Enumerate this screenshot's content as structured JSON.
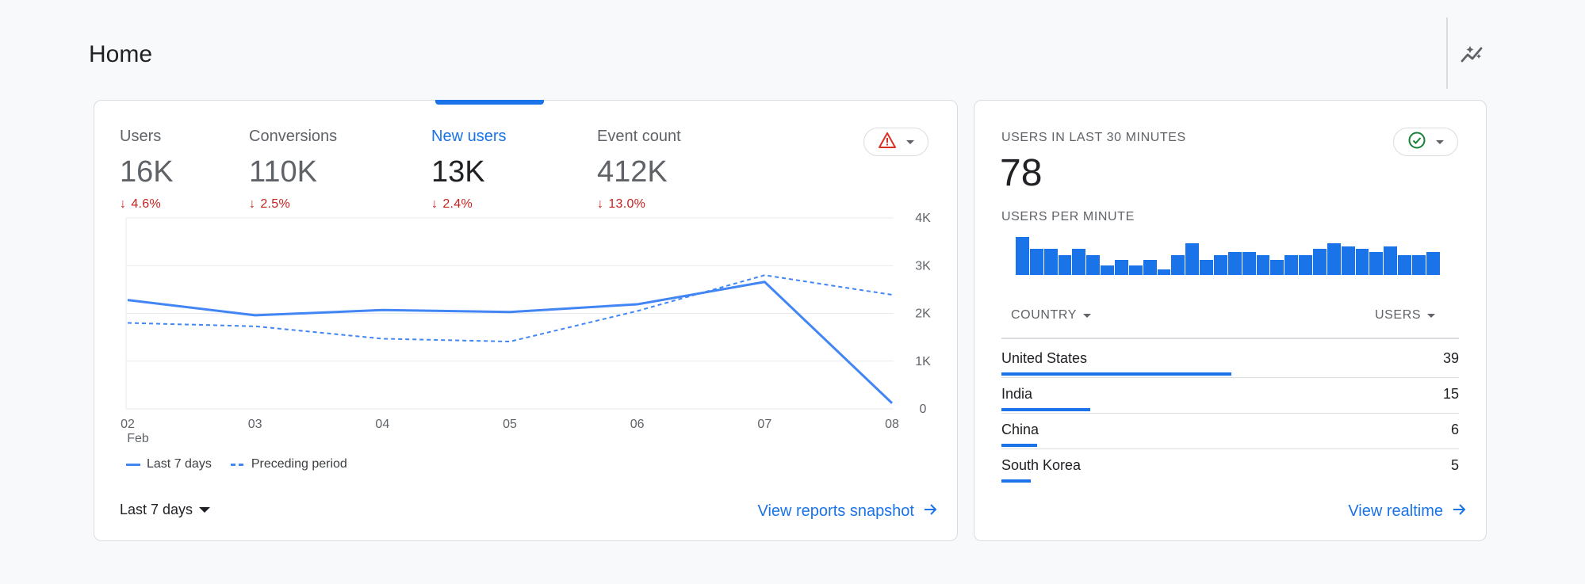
{
  "header": {
    "title": "Home",
    "insights_icon": "insights-sparkle-icon"
  },
  "overview": {
    "metrics": [
      {
        "label": "Users",
        "value": "16K",
        "change": "4.6%"
      },
      {
        "label": "Conversions",
        "value": "110K",
        "change": "2.5%"
      },
      {
        "label": "New users",
        "value": "13K",
        "change": "2.4%",
        "active": true
      },
      {
        "label": "Event count",
        "value": "412K",
        "change": "13.0%"
      }
    ],
    "alert_icon": "warning-triangle-icon",
    "date_range": "Last 7 days",
    "link": "View reports snapshot"
  },
  "chart_data": {
    "type": "line",
    "x": [
      "02",
      "03",
      "04",
      "05",
      "06",
      "07",
      "08"
    ],
    "x_sub": [
      "Feb",
      "",
      "",
      "",
      "",
      "",
      ""
    ],
    "ytick_labels": [
      "0",
      "1K",
      "2K",
      "3K",
      "4K"
    ],
    "ylim": [
      0,
      4000
    ],
    "y_side": "right",
    "grid": true,
    "legend_position": "bottom-left",
    "series": [
      {
        "name": "Last 7 days",
        "style": "solid",
        "values": [
          2280,
          1960,
          2070,
          2030,
          2190,
          2660,
          120
        ]
      },
      {
        "name": "Preceding period",
        "style": "dashed",
        "values": [
          1800,
          1730,
          1470,
          1410,
          2050,
          2800,
          2390
        ]
      }
    ],
    "colors": {
      "line": "#4285f4",
      "grid": "#e8eaed",
      "tick": "#5f6368"
    }
  },
  "realtime": {
    "title": "USERS IN LAST 30 MINUTES",
    "count": "78",
    "subtitle": "USERS PER MINUTE",
    "status_icon": "check-circle-icon",
    "per_minute": [
      5,
      3.4,
      3.4,
      2.6,
      3.4,
      2.6,
      1.2,
      2.0,
      1.2,
      2.0,
      0.7,
      2.6,
      4.2,
      2.0,
      2.6,
      3.0,
      3.0,
      2.6,
      2.0,
      2.6,
      2.6,
      3.4,
      4.2,
      3.8,
      3.4,
      3.0,
      3.8,
      2.6,
      2.6,
      3.0
    ],
    "table": {
      "col_country": "COUNTRY",
      "col_users": "USERS",
      "rows": [
        {
          "country": "United States",
          "users": "39",
          "share": 1.0
        },
        {
          "country": "India",
          "users": "15",
          "share": 0.385
        },
        {
          "country": "China",
          "users": "6",
          "share": 0.154
        },
        {
          "country": "South Korea",
          "users": "5",
          "share": 0.128
        }
      ]
    },
    "link": "View realtime"
  },
  "colors": {
    "accent": "#1a73e8",
    "negative": "#c5221f",
    "positive": "#188038",
    "warning": "#d93025"
  }
}
